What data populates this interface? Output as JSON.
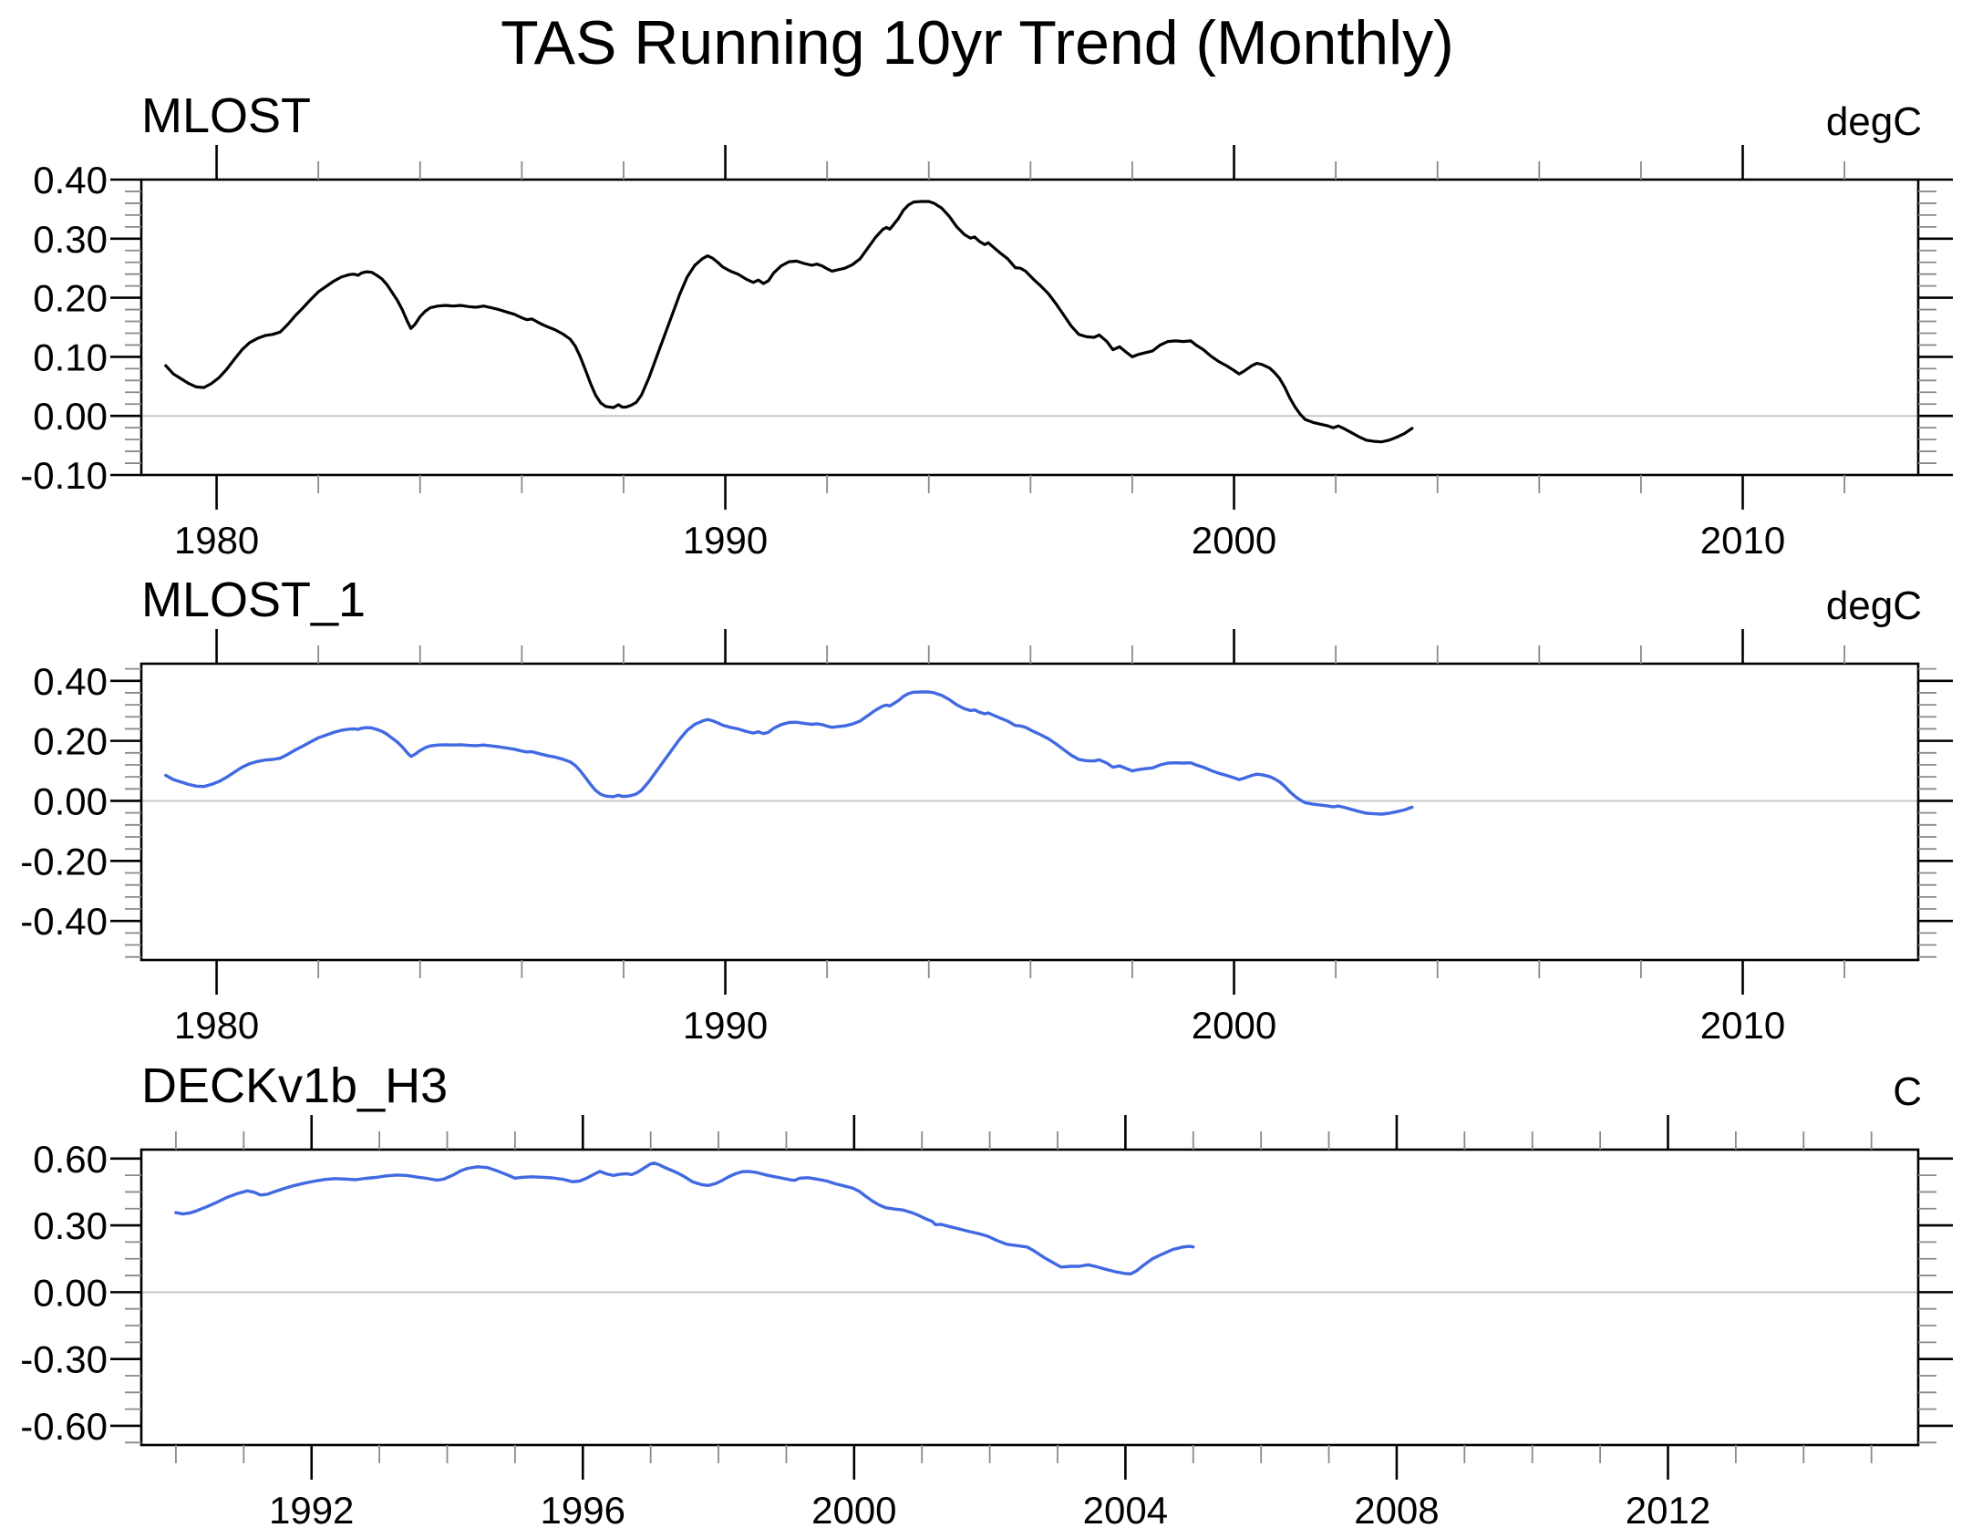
{
  "title": "TAS Running 10yr Trend (Monthly)",
  "colors": {
    "background": "#ffffff",
    "axis": "#000000",
    "major_tick": "#000000",
    "minor_tick": "#8a8a8a",
    "zero_line": "#c8c8c8",
    "black_series": "#000000",
    "blue_series": "#4169e1"
  },
  "chart_data": [
    {
      "type": "line",
      "title": "MLOST",
      "units": "degC",
      "series_color": "#000000",
      "legend": "none",
      "grid": "zero-line-only",
      "xlim": [
        1978.52,
        2013.45
      ],
      "ylim": [
        -0.1,
        0.4
      ],
      "xticks": [
        1980,
        1990,
        2000,
        2010
      ],
      "xtick_labels": [
        "1980",
        "1990",
        "2000",
        "2010"
      ],
      "x_minor_step": 2,
      "yticks": [
        0.4,
        0.3,
        0.2,
        0.1,
        0.0,
        -0.1
      ],
      "ytick_labels": [
        "0.40",
        "0.30",
        "0.20",
        "0.10",
        "0.00",
        "-0.10"
      ],
      "y_minor_step": 0.02,
      "x": [
        1979.0,
        1979.15,
        1979.3,
        1979.45,
        1979.6,
        1979.75,
        1979.9,
        1980.05,
        1980.2,
        1980.35,
        1980.5,
        1980.65,
        1980.8,
        1980.95,
        1981.1,
        1981.25,
        1981.4,
        1981.55,
        1981.7,
        1981.85,
        1982.0,
        1982.15,
        1982.3,
        1982.45,
        1982.6,
        1982.7,
        1982.78,
        1982.85,
        1982.95,
        1983.05,
        1983.15,
        1983.25,
        1983.35,
        1983.45,
        1983.55,
        1983.65,
        1983.75,
        1983.82,
        1983.9,
        1984.0,
        1984.1,
        1984.2,
        1984.35,
        1984.5,
        1984.65,
        1984.8,
        1984.95,
        1985.1,
        1985.25,
        1985.4,
        1985.55,
        1985.7,
        1985.85,
        1986.0,
        1986.1,
        1986.2,
        1986.35,
        1986.5,
        1986.65,
        1986.8,
        1986.95,
        1987.05,
        1987.15,
        1987.25,
        1987.35,
        1987.45,
        1987.55,
        1987.65,
        1987.8,
        1987.9,
        1987.97,
        1988.05,
        1988.15,
        1988.25,
        1988.35,
        1988.5,
        1988.65,
        1988.8,
        1988.95,
        1989.1,
        1989.25,
        1989.4,
        1989.55,
        1989.65,
        1989.75,
        1989.85,
        1989.95,
        1990.1,
        1990.25,
        1990.4,
        1990.55,
        1990.65,
        1990.75,
        1990.85,
        1990.95,
        1991.1,
        1991.25,
        1991.4,
        1991.55,
        1991.7,
        1991.8,
        1991.9,
        1992.0,
        1992.1,
        1992.2,
        1992.35,
        1992.5,
        1992.65,
        1992.8,
        1992.95,
        1993.1,
        1993.17,
        1993.23,
        1993.3,
        1993.4,
        1993.5,
        1993.6,
        1993.7,
        1993.85,
        1994.0,
        1994.1,
        1994.25,
        1994.4,
        1994.55,
        1994.7,
        1994.82,
        1994.9,
        1995.0,
        1995.1,
        1995.17,
        1995.25,
        1995.4,
        1995.55,
        1995.7,
        1995.8,
        1995.9,
        1996.05,
        1996.2,
        1996.35,
        1996.5,
        1996.65,
        1996.8,
        1996.95,
        1997.1,
        1997.25,
        1997.35,
        1997.5,
        1997.62,
        1997.75,
        1997.88,
        1998.0,
        1998.12,
        1998.25,
        1998.4,
        1998.55,
        1998.7,
        1998.85,
        1999.0,
        1999.15,
        1999.25,
        1999.4,
        1999.55,
        1999.7,
        1999.85,
        2000.0,
        2000.1,
        2000.2,
        2000.35,
        2000.45,
        2000.55,
        2000.7,
        2000.8,
        2000.9,
        2001.0,
        2001.1,
        2001.2,
        2001.3,
        2001.4,
        2001.55,
        2001.7,
        2001.85,
        2001.95,
        2002.05,
        2002.15,
        2002.3,
        2002.45,
        2002.6,
        2002.75,
        2002.9,
        2003.05,
        2003.2,
        2003.35,
        2003.45,
        2003.5
      ],
      "y": [
        0.085,
        0.071,
        0.063,
        0.055,
        0.049,
        0.048,
        0.055,
        0.065,
        0.079,
        0.096,
        0.112,
        0.124,
        0.131,
        0.136,
        0.138,
        0.142,
        0.155,
        0.17,
        0.183,
        0.197,
        0.21,
        0.219,
        0.228,
        0.235,
        0.239,
        0.24,
        0.238,
        0.242,
        0.244,
        0.243,
        0.238,
        0.232,
        0.222,
        0.209,
        0.196,
        0.18,
        0.16,
        0.148,
        0.155,
        0.168,
        0.177,
        0.183,
        0.186,
        0.187,
        0.186,
        0.187,
        0.185,
        0.184,
        0.186,
        0.183,
        0.18,
        0.176,
        0.172,
        0.166,
        0.163,
        0.164,
        0.157,
        0.151,
        0.146,
        0.139,
        0.13,
        0.118,
        0.1,
        0.078,
        0.055,
        0.035,
        0.022,
        0.016,
        0.014,
        0.019,
        0.015,
        0.015,
        0.018,
        0.023,
        0.035,
        0.065,
        0.1,
        0.135,
        0.17,
        0.205,
        0.235,
        0.255,
        0.266,
        0.271,
        0.267,
        0.26,
        0.252,
        0.245,
        0.24,
        0.232,
        0.226,
        0.23,
        0.224,
        0.229,
        0.242,
        0.254,
        0.261,
        0.262,
        0.258,
        0.255,
        0.257,
        0.254,
        0.249,
        0.245,
        0.247,
        0.25,
        0.256,
        0.266,
        0.284,
        0.302,
        0.316,
        0.319,
        0.316,
        0.323,
        0.334,
        0.348,
        0.357,
        0.362,
        0.363,
        0.363,
        0.36,
        0.352,
        0.338,
        0.32,
        0.307,
        0.301,
        0.303,
        0.295,
        0.29,
        0.293,
        0.287,
        0.276,
        0.266,
        0.251,
        0.25,
        0.245,
        0.232,
        0.22,
        0.207,
        0.19,
        0.171,
        0.152,
        0.138,
        0.134,
        0.133,
        0.137,
        0.126,
        0.112,
        0.117,
        0.108,
        0.1,
        0.104,
        0.107,
        0.11,
        0.12,
        0.126,
        0.127,
        0.126,
        0.127,
        0.12,
        0.112,
        0.101,
        0.092,
        0.085,
        0.077,
        0.071,
        0.076,
        0.085,
        0.089,
        0.087,
        0.081,
        0.073,
        0.063,
        0.048,
        0.03,
        0.015,
        0.003,
        -0.006,
        -0.011,
        -0.014,
        -0.017,
        -0.02,
        -0.017,
        -0.021,
        -0.028,
        -0.035,
        -0.041,
        -0.043,
        -0.044,
        -0.041,
        -0.036,
        -0.03,
        -0.024,
        -0.021
      ]
    },
    {
      "type": "line",
      "title": "MLOST_1",
      "units": "degC",
      "series_color": "#4169e1",
      "legend": "none",
      "grid": "zero-line-only",
      "xlim": [
        1978.52,
        2013.45
      ],
      "ylim": [
        -0.53,
        0.457
      ],
      "xticks": [
        1980,
        1990,
        2000,
        2010
      ],
      "xtick_labels": [
        "1980",
        "1990",
        "2000",
        "2010"
      ],
      "x_minor_step": 2,
      "yticks": [
        0.4,
        0.2,
        0.0,
        -0.2,
        -0.4
      ],
      "ytick_labels": [
        "0.40",
        "0.20",
        "0.00",
        "-0.20",
        "-0.40"
      ],
      "y_minor_step": 0.04,
      "x": [
        1979.0,
        1979.15,
        1979.3,
        1979.45,
        1979.6,
        1979.75,
        1979.9,
        1980.05,
        1980.2,
        1980.35,
        1980.5,
        1980.65,
        1980.8,
        1980.95,
        1981.1,
        1981.25,
        1981.4,
        1981.55,
        1981.7,
        1981.85,
        1982.0,
        1982.15,
        1982.3,
        1982.45,
        1982.6,
        1982.7,
        1982.78,
        1982.85,
        1982.95,
        1983.05,
        1983.15,
        1983.25,
        1983.35,
        1983.45,
        1983.55,
        1983.65,
        1983.75,
        1983.82,
        1983.9,
        1984.0,
        1984.1,
        1984.2,
        1984.35,
        1984.5,
        1984.65,
        1984.8,
        1984.95,
        1985.1,
        1985.25,
        1985.4,
        1985.55,
        1985.7,
        1985.85,
        1986.0,
        1986.1,
        1986.2,
        1986.35,
        1986.5,
        1986.65,
        1986.8,
        1986.95,
        1987.05,
        1987.15,
        1987.25,
        1987.35,
        1987.45,
        1987.55,
        1987.65,
        1987.8,
        1987.9,
        1987.97,
        1988.05,
        1988.15,
        1988.25,
        1988.35,
        1988.5,
        1988.65,
        1988.8,
        1988.95,
        1989.1,
        1989.25,
        1989.4,
        1989.55,
        1989.65,
        1989.75,
        1989.85,
        1989.95,
        1990.1,
        1990.25,
        1990.4,
        1990.55,
        1990.65,
        1990.75,
        1990.85,
        1990.95,
        1991.1,
        1991.25,
        1991.4,
        1991.55,
        1991.7,
        1991.8,
        1991.9,
        1992.0,
        1992.1,
        1992.2,
        1992.35,
        1992.5,
        1992.65,
        1992.8,
        1992.95,
        1993.1,
        1993.17,
        1993.23,
        1993.3,
        1993.4,
        1993.5,
        1993.6,
        1993.7,
        1993.85,
        1994.0,
        1994.1,
        1994.25,
        1994.4,
        1994.55,
        1994.7,
        1994.82,
        1994.9,
        1995.0,
        1995.1,
        1995.17,
        1995.25,
        1995.4,
        1995.55,
        1995.7,
        1995.8,
        1995.9,
        1996.05,
        1996.2,
        1996.35,
        1996.5,
        1996.65,
        1996.8,
        1996.95,
        1997.1,
        1997.25,
        1997.35,
        1997.5,
        1997.62,
        1997.75,
        1997.88,
        1998.0,
        1998.12,
        1998.25,
        1998.4,
        1998.55,
        1998.7,
        1998.85,
        1999.0,
        1999.15,
        1999.25,
        1999.4,
        1999.55,
        1999.7,
        1999.85,
        2000.0,
        2000.1,
        2000.2,
        2000.35,
        2000.45,
        2000.55,
        2000.7,
        2000.8,
        2000.9,
        2001.0,
        2001.1,
        2001.2,
        2001.3,
        2001.4,
        2001.55,
        2001.7,
        2001.85,
        2001.95,
        2002.05,
        2002.15,
        2002.3,
        2002.45,
        2002.6,
        2002.75,
        2002.9,
        2003.05,
        2003.2,
        2003.35,
        2003.45,
        2003.5
      ],
      "y": [
        0.085,
        0.071,
        0.063,
        0.055,
        0.049,
        0.048,
        0.055,
        0.065,
        0.079,
        0.096,
        0.112,
        0.124,
        0.131,
        0.136,
        0.138,
        0.142,
        0.155,
        0.17,
        0.183,
        0.197,
        0.21,
        0.219,
        0.228,
        0.235,
        0.239,
        0.24,
        0.238,
        0.242,
        0.244,
        0.243,
        0.238,
        0.232,
        0.222,
        0.209,
        0.196,
        0.18,
        0.16,
        0.148,
        0.155,
        0.168,
        0.177,
        0.183,
        0.186,
        0.187,
        0.186,
        0.187,
        0.185,
        0.184,
        0.186,
        0.183,
        0.18,
        0.176,
        0.172,
        0.166,
        0.163,
        0.164,
        0.157,
        0.151,
        0.146,
        0.139,
        0.13,
        0.118,
        0.1,
        0.078,
        0.055,
        0.035,
        0.022,
        0.016,
        0.014,
        0.019,
        0.015,
        0.015,
        0.018,
        0.023,
        0.035,
        0.065,
        0.1,
        0.135,
        0.17,
        0.205,
        0.235,
        0.255,
        0.266,
        0.271,
        0.267,
        0.26,
        0.252,
        0.245,
        0.24,
        0.232,
        0.226,
        0.23,
        0.224,
        0.229,
        0.242,
        0.254,
        0.261,
        0.262,
        0.258,
        0.255,
        0.257,
        0.254,
        0.249,
        0.245,
        0.247,
        0.25,
        0.256,
        0.266,
        0.284,
        0.302,
        0.316,
        0.319,
        0.316,
        0.323,
        0.334,
        0.348,
        0.357,
        0.362,
        0.363,
        0.363,
        0.36,
        0.352,
        0.338,
        0.32,
        0.307,
        0.301,
        0.303,
        0.295,
        0.29,
        0.293,
        0.287,
        0.276,
        0.266,
        0.251,
        0.25,
        0.245,
        0.232,
        0.22,
        0.207,
        0.19,
        0.171,
        0.152,
        0.138,
        0.134,
        0.133,
        0.137,
        0.126,
        0.112,
        0.117,
        0.108,
        0.1,
        0.104,
        0.107,
        0.11,
        0.12,
        0.126,
        0.127,
        0.126,
        0.127,
        0.12,
        0.112,
        0.101,
        0.092,
        0.085,
        0.077,
        0.071,
        0.076,
        0.085,
        0.089,
        0.087,
        0.081,
        0.073,
        0.063,
        0.048,
        0.03,
        0.015,
        0.003,
        -0.006,
        -0.011,
        -0.014,
        -0.017,
        -0.02,
        -0.017,
        -0.021,
        -0.028,
        -0.035,
        -0.041,
        -0.043,
        -0.044,
        -0.041,
        -0.036,
        -0.03,
        -0.024,
        -0.021
      ]
    },
    {
      "type": "line",
      "title": "DECKv1b_H3",
      "units": "C",
      "series_color": "#4169e1",
      "legend": "none",
      "grid": "zero-line-only",
      "xlim": [
        1989.49,
        2015.69
      ],
      "ylim": [
        -0.686,
        0.64
      ],
      "xticks": [
        1992,
        1996,
        2000,
        2004,
        2008,
        2012
      ],
      "xtick_labels": [
        "1992",
        "1996",
        "2000",
        "2004",
        "2008",
        "2012"
      ],
      "x_minor_step": 1,
      "yticks": [
        0.6,
        0.3,
        0.0,
        -0.3,
        -0.6
      ],
      "ytick_labels": [
        "0.60",
        "0.30",
        "0.00",
        "-0.30",
        "-0.60"
      ],
      "y_minor_step": 0.075,
      "x": [
        1990.0,
        1990.1,
        1990.2,
        1990.3,
        1990.45,
        1990.6,
        1990.75,
        1990.9,
        1991.05,
        1991.15,
        1991.25,
        1991.35,
        1991.45,
        1991.6,
        1991.75,
        1991.9,
        1992.05,
        1992.2,
        1992.35,
        1992.5,
        1992.65,
        1992.8,
        1992.95,
        1993.1,
        1993.25,
        1993.4,
        1993.55,
        1993.7,
        1993.85,
        1993.95,
        1994.1,
        1994.2,
        1994.3,
        1994.45,
        1994.6,
        1994.75,
        1994.9,
        1995.0,
        1995.12,
        1995.25,
        1995.4,
        1995.55,
        1995.7,
        1995.85,
        1995.95,
        1996.05,
        1996.15,
        1996.25,
        1996.35,
        1996.45,
        1996.55,
        1996.65,
        1996.72,
        1996.8,
        1996.9,
        1997.0,
        1997.05,
        1997.12,
        1997.2,
        1997.3,
        1997.4,
        1997.5,
        1997.62,
        1997.75,
        1997.85,
        1997.95,
        1998.05,
        1998.15,
        1998.25,
        1998.35,
        1998.45,
        1998.55,
        1998.68,
        1998.8,
        1998.92,
        1999.05,
        1999.12,
        1999.2,
        1999.32,
        1999.45,
        1999.6,
        1999.72,
        1999.85,
        1999.97,
        2000.07,
        2000.17,
        2000.27,
        2000.37,
        2000.47,
        2000.6,
        2000.72,
        2000.85,
        2000.95,
        2001.05,
        2001.15,
        2001.2,
        2001.28,
        2001.4,
        2001.55,
        2001.7,
        2001.85,
        2001.97,
        2002.1,
        2002.25,
        2002.4,
        2002.55,
        2002.65,
        2002.8,
        2002.92,
        2003.05,
        2003.2,
        2003.32,
        2003.45,
        2003.58,
        2003.72,
        2003.85,
        2004.0,
        2004.08,
        2004.17,
        2004.27,
        2004.4,
        2004.55,
        2004.7,
        2004.85,
        2004.95,
        2005.0
      ],
      "y": [
        0.357,
        0.351,
        0.355,
        0.365,
        0.383,
        0.403,
        0.425,
        0.442,
        0.455,
        0.449,
        0.436,
        0.44,
        0.451,
        0.466,
        0.479,
        0.49,
        0.499,
        0.506,
        0.51,
        0.508,
        0.505,
        0.511,
        0.515,
        0.522,
        0.526,
        0.524,
        0.517,
        0.511,
        0.503,
        0.508,
        0.528,
        0.545,
        0.556,
        0.563,
        0.559,
        0.543,
        0.525,
        0.512,
        0.516,
        0.518,
        0.516,
        0.513,
        0.507,
        0.496,
        0.499,
        0.511,
        0.527,
        0.542,
        0.531,
        0.524,
        0.53,
        0.532,
        0.528,
        0.538,
        0.557,
        0.576,
        0.58,
        0.573,
        0.561,
        0.548,
        0.535,
        0.518,
        0.495,
        0.483,
        0.479,
        0.487,
        0.501,
        0.518,
        0.532,
        0.541,
        0.542,
        0.538,
        0.528,
        0.52,
        0.513,
        0.505,
        0.502,
        0.512,
        0.514,
        0.508,
        0.499,
        0.487,
        0.477,
        0.468,
        0.454,
        0.431,
        0.409,
        0.391,
        0.379,
        0.373,
        0.369,
        0.357,
        0.345,
        0.33,
        0.318,
        0.303,
        0.305,
        0.295,
        0.284,
        0.272,
        0.262,
        0.251,
        0.233,
        0.215,
        0.209,
        0.203,
        0.186,
        0.156,
        0.135,
        0.113,
        0.116,
        0.116,
        0.123,
        0.114,
        0.102,
        0.092,
        0.084,
        0.082,
        0.097,
        0.122,
        0.15,
        0.172,
        0.192,
        0.203,
        0.206,
        0.203
      ]
    }
  ]
}
